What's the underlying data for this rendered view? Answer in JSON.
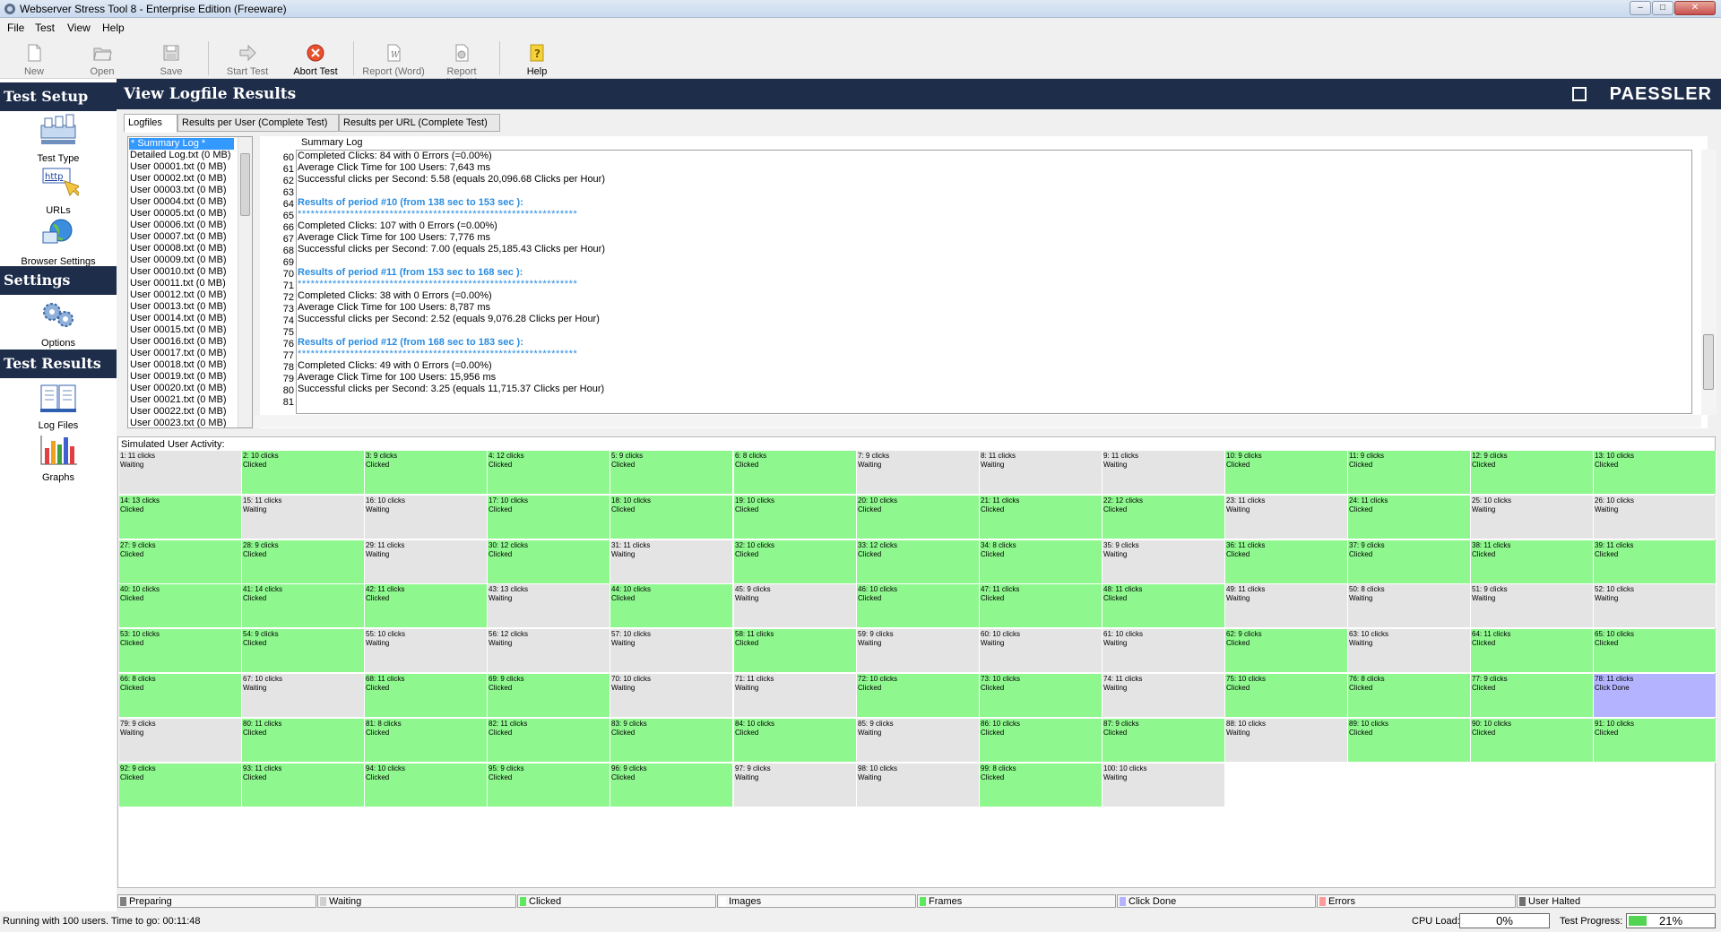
{
  "window": {
    "title": "Webserver Stress Tool 8 - Enterprise Edition (Freeware)"
  },
  "menu": [
    "File",
    "Test",
    "View",
    "Help"
  ],
  "toolbar": {
    "new": "New",
    "open": "Open",
    "save": "Save",
    "start": "Start Test",
    "abort": "Abort Test",
    "report_word": "Report (Word)",
    "report_html": "Report (HTML)",
    "help": "Help"
  },
  "sidebar": {
    "test_setup": "Test Setup",
    "test_type": "Test Type",
    "urls": "URLs",
    "browser_settings": "Browser Settings",
    "settings": "Settings",
    "options": "Options",
    "test_results": "Test Results",
    "log_files": "Log Files",
    "graphs": "Graphs"
  },
  "main": {
    "title": "View Logfile Results",
    "brand": "PAESSLER",
    "tabs": [
      "Logfiles",
      "Results per User (Complete Test)",
      "Results per URL (Complete Test)"
    ]
  },
  "files": [
    "* Summary Log *",
    "Detailed Log.txt (0 MB)",
    "User 00001.txt (0 MB)",
    "User 00002.txt (0 MB)",
    "User 00003.txt (0 MB)",
    "User 00004.txt (0 MB)",
    "User 00005.txt (0 MB)",
    "User 00006.txt (0 MB)",
    "User 00007.txt (0 MB)",
    "User 00008.txt (0 MB)",
    "User 00009.txt (0 MB)",
    "User 00010.txt (0 MB)",
    "User 00011.txt (0 MB)",
    "User 00012.txt (0 MB)",
    "User 00013.txt (0 MB)",
    "User 00014.txt (0 MB)",
    "User 00015.txt (0 MB)",
    "User 00016.txt (0 MB)",
    "User 00017.txt (0 MB)",
    "User 00018.txt (0 MB)",
    "User 00019.txt (0 MB)",
    "User 00020.txt (0 MB)",
    "User 00021.txt (0 MB)",
    "User 00022.txt (0 MB)",
    "User 00023.txt (0 MB)"
  ],
  "log": {
    "caption": "Summary Log",
    "lines": [
      {
        "n": "60",
        "t": "Completed Clicks: 84 with 0 Errors (=0.00%)",
        "k": ""
      },
      {
        "n": "61",
        "t": "Average Click Time for 100 Users: 7,643 ms",
        "k": ""
      },
      {
        "n": "62",
        "t": "Successful clicks per Second: 5.58 (equals 20,096.68 Clicks per Hour)",
        "k": ""
      },
      {
        "n": "63",
        "t": "",
        "k": ""
      },
      {
        "n": "64",
        "t": "Results of period #10 (from 138 sec to 153 sec ):",
        "k": "h"
      },
      {
        "n": "65",
        "t": "****************************************************************",
        "k": "s"
      },
      {
        "n": "66",
        "t": "Completed Clicks: 107 with 0 Errors (=0.00%)",
        "k": ""
      },
      {
        "n": "67",
        "t": "Average Click Time for 100 Users: 7,776 ms",
        "k": ""
      },
      {
        "n": "68",
        "t": "Successful clicks per Second: 7.00 (equals 25,185.43 Clicks per Hour)",
        "k": ""
      },
      {
        "n": "69",
        "t": "",
        "k": ""
      },
      {
        "n": "70",
        "t": "Results of period #11 (from 153 sec to 168 sec ):",
        "k": "h"
      },
      {
        "n": "71",
        "t": "****************************************************************",
        "k": "s"
      },
      {
        "n": "72",
        "t": "Completed Clicks: 38 with 0 Errors (=0.00%)",
        "k": ""
      },
      {
        "n": "73",
        "t": "Average Click Time for 100 Users: 8,787 ms",
        "k": ""
      },
      {
        "n": "74",
        "t": "Successful clicks per Second: 2.52 (equals 9,076.28 Clicks per Hour)",
        "k": ""
      },
      {
        "n": "75",
        "t": "",
        "k": ""
      },
      {
        "n": "76",
        "t": "Results of period #12 (from 168 sec to 183 sec ):",
        "k": "h"
      },
      {
        "n": "77",
        "t": "****************************************************************",
        "k": "s"
      },
      {
        "n": "78",
        "t": "Completed Clicks: 49 with 0 Errors (=0.00%)",
        "k": ""
      },
      {
        "n": "79",
        "t": "Average Click Time for 100 Users: 15,956 ms",
        "k": ""
      },
      {
        "n": "80",
        "t": "Successful clicks per Second: 3.25 (equals 11,715.37 Clicks per Hour)",
        "k": ""
      },
      {
        "n": "81",
        "t": "",
        "k": ""
      }
    ]
  },
  "activity": {
    "caption": "Simulated User Activity:",
    "users": [
      [
        "1: 11 clicks",
        "Waiting"
      ],
      [
        "2: 10 clicks",
        "Clicked"
      ],
      [
        "3: 9 clicks",
        "Clicked"
      ],
      [
        "4: 12 clicks",
        "Clicked"
      ],
      [
        "5: 9 clicks",
        "Clicked"
      ],
      [
        "6: 8 clicks",
        "Clicked"
      ],
      [
        "7: 9 clicks",
        "Waiting"
      ],
      [
        "8: 11 clicks",
        "Waiting"
      ],
      [
        "9: 11 clicks",
        "Waiting"
      ],
      [
        "10: 9 clicks",
        "Clicked"
      ],
      [
        "11: 9 clicks",
        "Clicked"
      ],
      [
        "12: 9 clicks",
        "Clicked"
      ],
      [
        "13: 10 clicks",
        "Clicked"
      ],
      [
        "14: 13 clicks",
        "Clicked"
      ],
      [
        "15: 11 clicks",
        "Waiting"
      ],
      [
        "16: 10 clicks",
        "Waiting"
      ],
      [
        "17: 10 clicks",
        "Clicked"
      ],
      [
        "18: 10 clicks",
        "Clicked"
      ],
      [
        "19: 10 clicks",
        "Clicked"
      ],
      [
        "20: 10 clicks",
        "Clicked"
      ],
      [
        "21: 11 clicks",
        "Clicked"
      ],
      [
        "22: 12 clicks",
        "Clicked"
      ],
      [
        "23: 11 clicks",
        "Waiting"
      ],
      [
        "24: 11 clicks",
        "Clicked"
      ],
      [
        "25: 10 clicks",
        "Waiting"
      ],
      [
        "26: 10 clicks",
        "Waiting"
      ],
      [
        "27: 9 clicks",
        "Clicked"
      ],
      [
        "28: 9 clicks",
        "Clicked"
      ],
      [
        "29: 11 clicks",
        "Waiting"
      ],
      [
        "30: 12 clicks",
        "Clicked"
      ],
      [
        "31: 11 clicks",
        "Waiting"
      ],
      [
        "32: 10 clicks",
        "Clicked"
      ],
      [
        "33: 12 clicks",
        "Clicked"
      ],
      [
        "34: 8 clicks",
        "Clicked"
      ],
      [
        "35: 9 clicks",
        "Waiting"
      ],
      [
        "36: 11 clicks",
        "Clicked"
      ],
      [
        "37: 9 clicks",
        "Clicked"
      ],
      [
        "38: 11 clicks",
        "Clicked"
      ],
      [
        "39: 11 clicks",
        "Clicked"
      ],
      [
        "40: 10 clicks",
        "Clicked"
      ],
      [
        "41: 14 clicks",
        "Clicked"
      ],
      [
        "42: 11 clicks",
        "Clicked"
      ],
      [
        "43: 13 clicks",
        "Waiting"
      ],
      [
        "44: 10 clicks",
        "Clicked"
      ],
      [
        "45: 9 clicks",
        "Waiting"
      ],
      [
        "46: 10 clicks",
        "Clicked"
      ],
      [
        "47: 11 clicks",
        "Clicked"
      ],
      [
        "48: 11 clicks",
        "Clicked"
      ],
      [
        "49: 11 clicks",
        "Waiting"
      ],
      [
        "50: 8 clicks",
        "Waiting"
      ],
      [
        "51: 9 clicks",
        "Waiting"
      ],
      [
        "52: 10 clicks",
        "Waiting"
      ],
      [
        "53: 10 clicks",
        "Clicked"
      ],
      [
        "54: 9 clicks",
        "Clicked"
      ],
      [
        "55: 10 clicks",
        "Waiting"
      ],
      [
        "56: 12 clicks",
        "Waiting"
      ],
      [
        "57: 10 clicks",
        "Waiting"
      ],
      [
        "58: 11 clicks",
        "Clicked"
      ],
      [
        "59: 9 clicks",
        "Waiting"
      ],
      [
        "60: 10 clicks",
        "Waiting"
      ],
      [
        "61: 10 clicks",
        "Waiting"
      ],
      [
        "62: 9 clicks",
        "Clicked"
      ],
      [
        "63: 10 clicks",
        "Waiting"
      ],
      [
        "64: 11 clicks",
        "Clicked"
      ],
      [
        "65: 10 clicks",
        "Clicked"
      ],
      [
        "66: 8 clicks",
        "Clicked"
      ],
      [
        "67: 10 clicks",
        "Waiting"
      ],
      [
        "68: 11 clicks",
        "Clicked"
      ],
      [
        "69: 9 clicks",
        "Clicked"
      ],
      [
        "70: 10 clicks",
        "Waiting"
      ],
      [
        "71: 11 clicks",
        "Waiting"
      ],
      [
        "72: 10 clicks",
        "Clicked"
      ],
      [
        "73: 10 clicks",
        "Clicked"
      ],
      [
        "74: 11 clicks",
        "Waiting"
      ],
      [
        "75: 10 clicks",
        "Clicked"
      ],
      [
        "76: 8 clicks",
        "Clicked"
      ],
      [
        "77: 9 clicks",
        "Clicked"
      ],
      [
        "78: 11 clicks",
        "Click Done"
      ],
      [
        "79: 9 clicks",
        "Waiting"
      ],
      [
        "80: 11 clicks",
        "Clicked"
      ],
      [
        "81: 8 clicks",
        "Clicked"
      ],
      [
        "82: 11 clicks",
        "Clicked"
      ],
      [
        "83: 9 clicks",
        "Clicked"
      ],
      [
        "84: 10 clicks",
        "Clicked"
      ],
      [
        "85: 9 clicks",
        "Waiting"
      ],
      [
        "86: 10 clicks",
        "Clicked"
      ],
      [
        "87: 9 clicks",
        "Clicked"
      ],
      [
        "88: 10 clicks",
        "Waiting"
      ],
      [
        "89: 10 clicks",
        "Clicked"
      ],
      [
        "90: 10 clicks",
        "Clicked"
      ],
      [
        "91: 10 clicks",
        "Clicked"
      ],
      [
        "92: 9 clicks",
        "Clicked"
      ],
      [
        "93: 11 clicks",
        "Clicked"
      ],
      [
        "94: 10 clicks",
        "Clicked"
      ],
      [
        "95: 9 clicks",
        "Clicked"
      ],
      [
        "96: 9 clicks",
        "Clicked"
      ],
      [
        "97: 9 clicks",
        "Waiting"
      ],
      [
        "98: 10 clicks",
        "Waiting"
      ],
      [
        "99: 8 clicks",
        "Clicked"
      ],
      [
        "100: 10 clicks",
        "Waiting"
      ]
    ]
  },
  "legend": [
    {
      "label": "Preparing",
      "color": "#808080"
    },
    {
      "label": "Waiting",
      "color": "#d0d0d0"
    },
    {
      "label": "Clicked",
      "color": "#5ee85e"
    },
    {
      "label": "Images",
      "color": "#ffffff"
    },
    {
      "label": "Frames",
      "color": "#5ee85e"
    },
    {
      "label": "Click Done",
      "color": "#b3b3ff"
    },
    {
      "label": "Errors",
      "color": "#ff9a9a"
    },
    {
      "label": "User Halted",
      "color": "#707070"
    }
  ],
  "status": {
    "text": "Running with 100 users. Time to go: 00:11:48",
    "cpu_label": "CPU Load:",
    "cpu_value": "0%",
    "progress_label": "Test Progress:",
    "progress_value": "21%",
    "progress_fraction": 0.21
  },
  "colors": {
    "header_bg": "#1e2d4a",
    "clicked": "#8ef88e",
    "waiting": "#e4e4e4",
    "click_done": "#b3b3ff",
    "log_heading": "#2a8ce0"
  }
}
